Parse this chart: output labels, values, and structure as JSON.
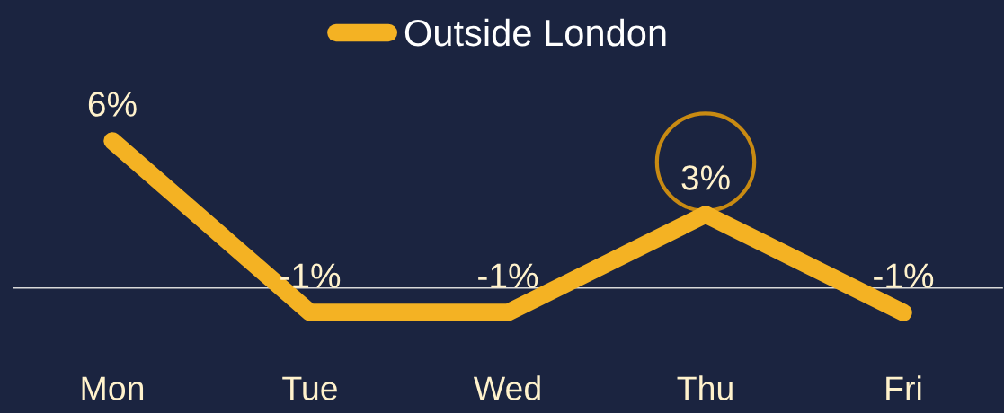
{
  "chart_data": {
    "type": "line",
    "categories": [
      "Mon",
      "Tue",
      "Wed",
      "Thu",
      "Fri"
    ],
    "series": [
      {
        "name": "Outside London",
        "color": "#f4b223",
        "values": [
          6,
          -1,
          -1,
          3,
          -1
        ],
        "value_labels": [
          "6%",
          "-1%",
          "-1%",
          "3%",
          "-1%"
        ]
      }
    ],
    "tick_labels": "x",
    "legend": "top",
    "line_style": "solid"
  }
}
